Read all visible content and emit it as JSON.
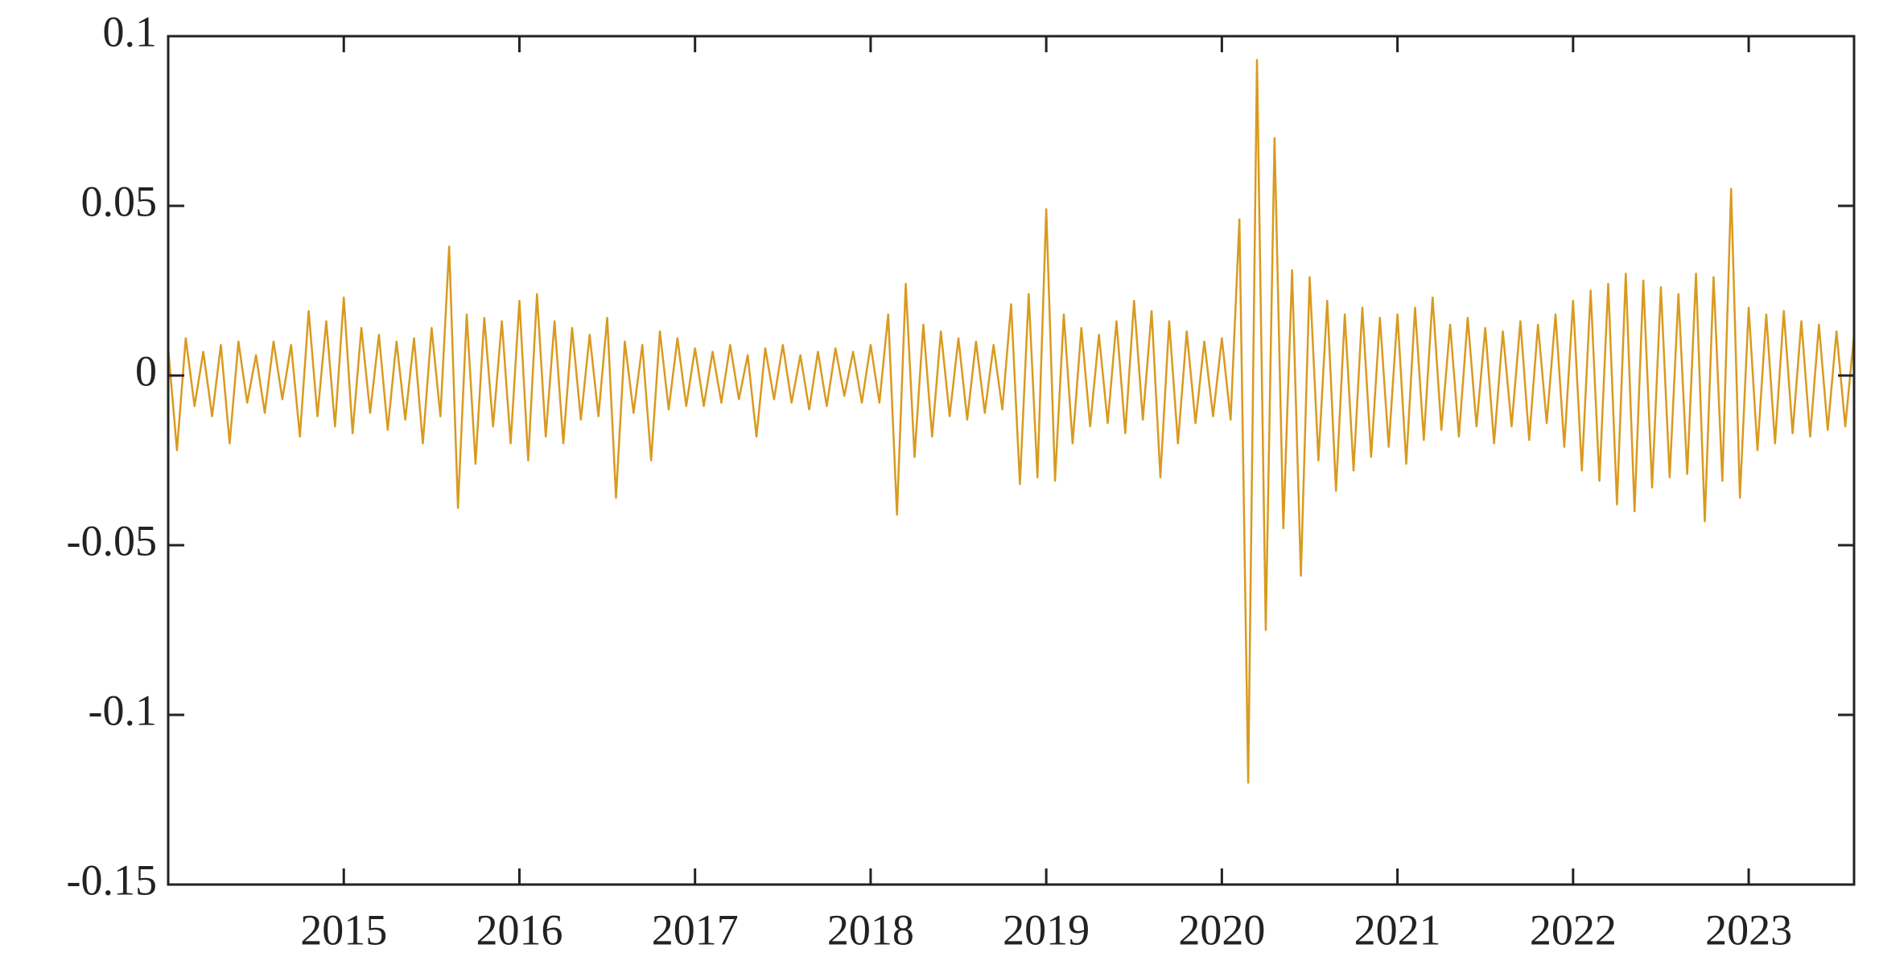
{
  "chart_data": {
    "type": "line",
    "color": "#d99a1f",
    "xlim": [
      2014,
      2023.6
    ],
    "xticks": [
      2015,
      2016,
      2017,
      2018,
      2019,
      2020,
      2021,
      2022,
      2023
    ],
    "ylim": [
      -0.15,
      0.1
    ],
    "yticks": [
      -0.15,
      -0.1,
      -0.05,
      0,
      0.05,
      0.1
    ],
    "x": [
      2014,
      2014.05,
      2014.1,
      2014.15,
      2014.2,
      2014.25,
      2014.3,
      2014.35,
      2014.4,
      2014.45,
      2014.5,
      2014.55,
      2014.6,
      2014.65,
      2014.7,
      2014.75,
      2014.8,
      2014.85,
      2014.9,
      2014.95,
      2015,
      2015.05,
      2015.1,
      2015.15,
      2015.2,
      2015.25,
      2015.3,
      2015.35,
      2015.4,
      2015.45,
      2015.5,
      2015.55,
      2015.6,
      2015.65,
      2015.7,
      2015.75,
      2015.8,
      2015.85,
      2015.9,
      2015.95,
      2016,
      2016.05,
      2016.1,
      2016.15,
      2016.2,
      2016.25,
      2016.3,
      2016.35,
      2016.4,
      2016.45,
      2016.5,
      2016.55,
      2016.6,
      2016.65,
      2016.7,
      2016.75,
      2016.8,
      2016.85,
      2016.9,
      2016.95,
      2017,
      2017.05,
      2017.1,
      2017.15,
      2017.2,
      2017.25,
      2017.3,
      2017.35,
      2017.4,
      2017.45,
      2017.5,
      2017.55,
      2017.6,
      2017.65,
      2017.7,
      2017.75,
      2017.8,
      2017.85,
      2017.9,
      2017.95,
      2018,
      2018.05,
      2018.1,
      2018.15,
      2018.2,
      2018.25,
      2018.3,
      2018.35,
      2018.4,
      2018.45,
      2018.5,
      2018.55,
      2018.6,
      2018.65,
      2018.7,
      2018.75,
      2018.8,
      2018.85,
      2018.9,
      2018.95,
      2019,
      2019.05,
      2019.1,
      2019.15,
      2019.2,
      2019.25,
      2019.3,
      2019.35,
      2019.4,
      2019.45,
      2019.5,
      2019.55,
      2019.6,
      2019.65,
      2019.7,
      2019.75,
      2019.8,
      2019.85,
      2019.9,
      2019.95,
      2020,
      2020.05,
      2020.1,
      2020.15,
      2020.2,
      2020.25,
      2020.3,
      2020.35,
      2020.4,
      2020.45,
      2020.5,
      2020.55,
      2020.6,
      2020.65,
      2020.7,
      2020.75,
      2020.8,
      2020.85,
      2020.9,
      2020.95,
      2021,
      2021.05,
      2021.1,
      2021.15,
      2021.2,
      2021.25,
      2021.3,
      2021.35,
      2021.4,
      2021.45,
      2021.5,
      2021.55,
      2021.6,
      2021.65,
      2021.7,
      2021.75,
      2021.8,
      2021.85,
      2021.9,
      2021.95,
      2022,
      2022.05,
      2022.1,
      2022.15,
      2022.2,
      2022.25,
      2022.3,
      2022.35,
      2022.4,
      2022.45,
      2022.5,
      2022.55,
      2022.6,
      2022.65,
      2022.7,
      2022.75,
      2022.8,
      2022.85,
      2022.9,
      2022.95,
      2023,
      2023.05,
      2023.1,
      2023.15,
      2023.2,
      2023.25,
      2023.3,
      2023.35,
      2023.4,
      2023.45,
      2023.5,
      2023.55,
      2023.6
    ],
    "values": [
      0.008,
      -0.022,
      0.011,
      -0.009,
      0.007,
      -0.012,
      0.009,
      -0.02,
      0.01,
      -0.008,
      0.006,
      -0.011,
      0.01,
      -0.007,
      0.009,
      -0.018,
      0.019,
      -0.012,
      0.016,
      -0.015,
      0.023,
      -0.017,
      0.014,
      -0.011,
      0.012,
      -0.016,
      0.01,
      -0.013,
      0.011,
      -0.02,
      0.014,
      -0.012,
      0.038,
      -0.039,
      0.018,
      -0.026,
      0.017,
      -0.015,
      0.016,
      -0.02,
      0.022,
      -0.025,
      0.024,
      -0.018,
      0.016,
      -0.02,
      0.014,
      -0.013,
      0.012,
      -0.012,
      0.017,
      -0.036,
      0.01,
      -0.011,
      0.009,
      -0.025,
      0.013,
      -0.01,
      0.011,
      -0.009,
      0.008,
      -0.009,
      0.007,
      -0.008,
      0.009,
      -0.007,
      0.006,
      -0.018,
      0.008,
      -0.007,
      0.009,
      -0.008,
      0.006,
      -0.01,
      0.007,
      -0.009,
      0.008,
      -0.006,
      0.007,
      -0.008,
      0.009,
      -0.008,
      0.018,
      -0.041,
      0.027,
      -0.024,
      0.015,
      -0.018,
      0.013,
      -0.012,
      0.011,
      -0.013,
      0.01,
      -0.011,
      0.009,
      -0.01,
      0.021,
      -0.032,
      0.024,
      -0.03,
      0.049,
      -0.031,
      0.018,
      -0.02,
      0.014,
      -0.015,
      0.012,
      -0.014,
      0.016,
      -0.017,
      0.022,
      -0.013,
      0.019,
      -0.03,
      0.016,
      -0.02,
      0.013,
      -0.014,
      0.01,
      -0.012,
      0.011,
      -0.013,
      0.046,
      -0.12,
      0.093,
      -0.075,
      0.07,
      -0.045,
      0.031,
      -0.059,
      0.029,
      -0.025,
      0.022,
      -0.034,
      0.018,
      -0.028,
      0.02,
      -0.024,
      0.017,
      -0.021,
      0.018,
      -0.026,
      0.02,
      -0.019,
      0.023,
      -0.016,
      0.015,
      -0.018,
      0.017,
      -0.015,
      0.014,
      -0.02,
      0.013,
      -0.015,
      0.016,
      -0.019,
      0.015,
      -0.014,
      0.018,
      -0.021,
      0.022,
      -0.028,
      0.025,
      -0.031,
      0.027,
      -0.038,
      0.03,
      -0.04,
      0.028,
      -0.033,
      0.026,
      -0.03,
      0.024,
      -0.029,
      0.03,
      -0.043,
      0.029,
      -0.031,
      0.055,
      -0.036,
      0.02,
      -0.022,
      0.018,
      -0.02,
      0.019,
      -0.017,
      0.016,
      -0.018,
      0.015,
      -0.016,
      0.013,
      -0.015,
      0.012
    ]
  }
}
